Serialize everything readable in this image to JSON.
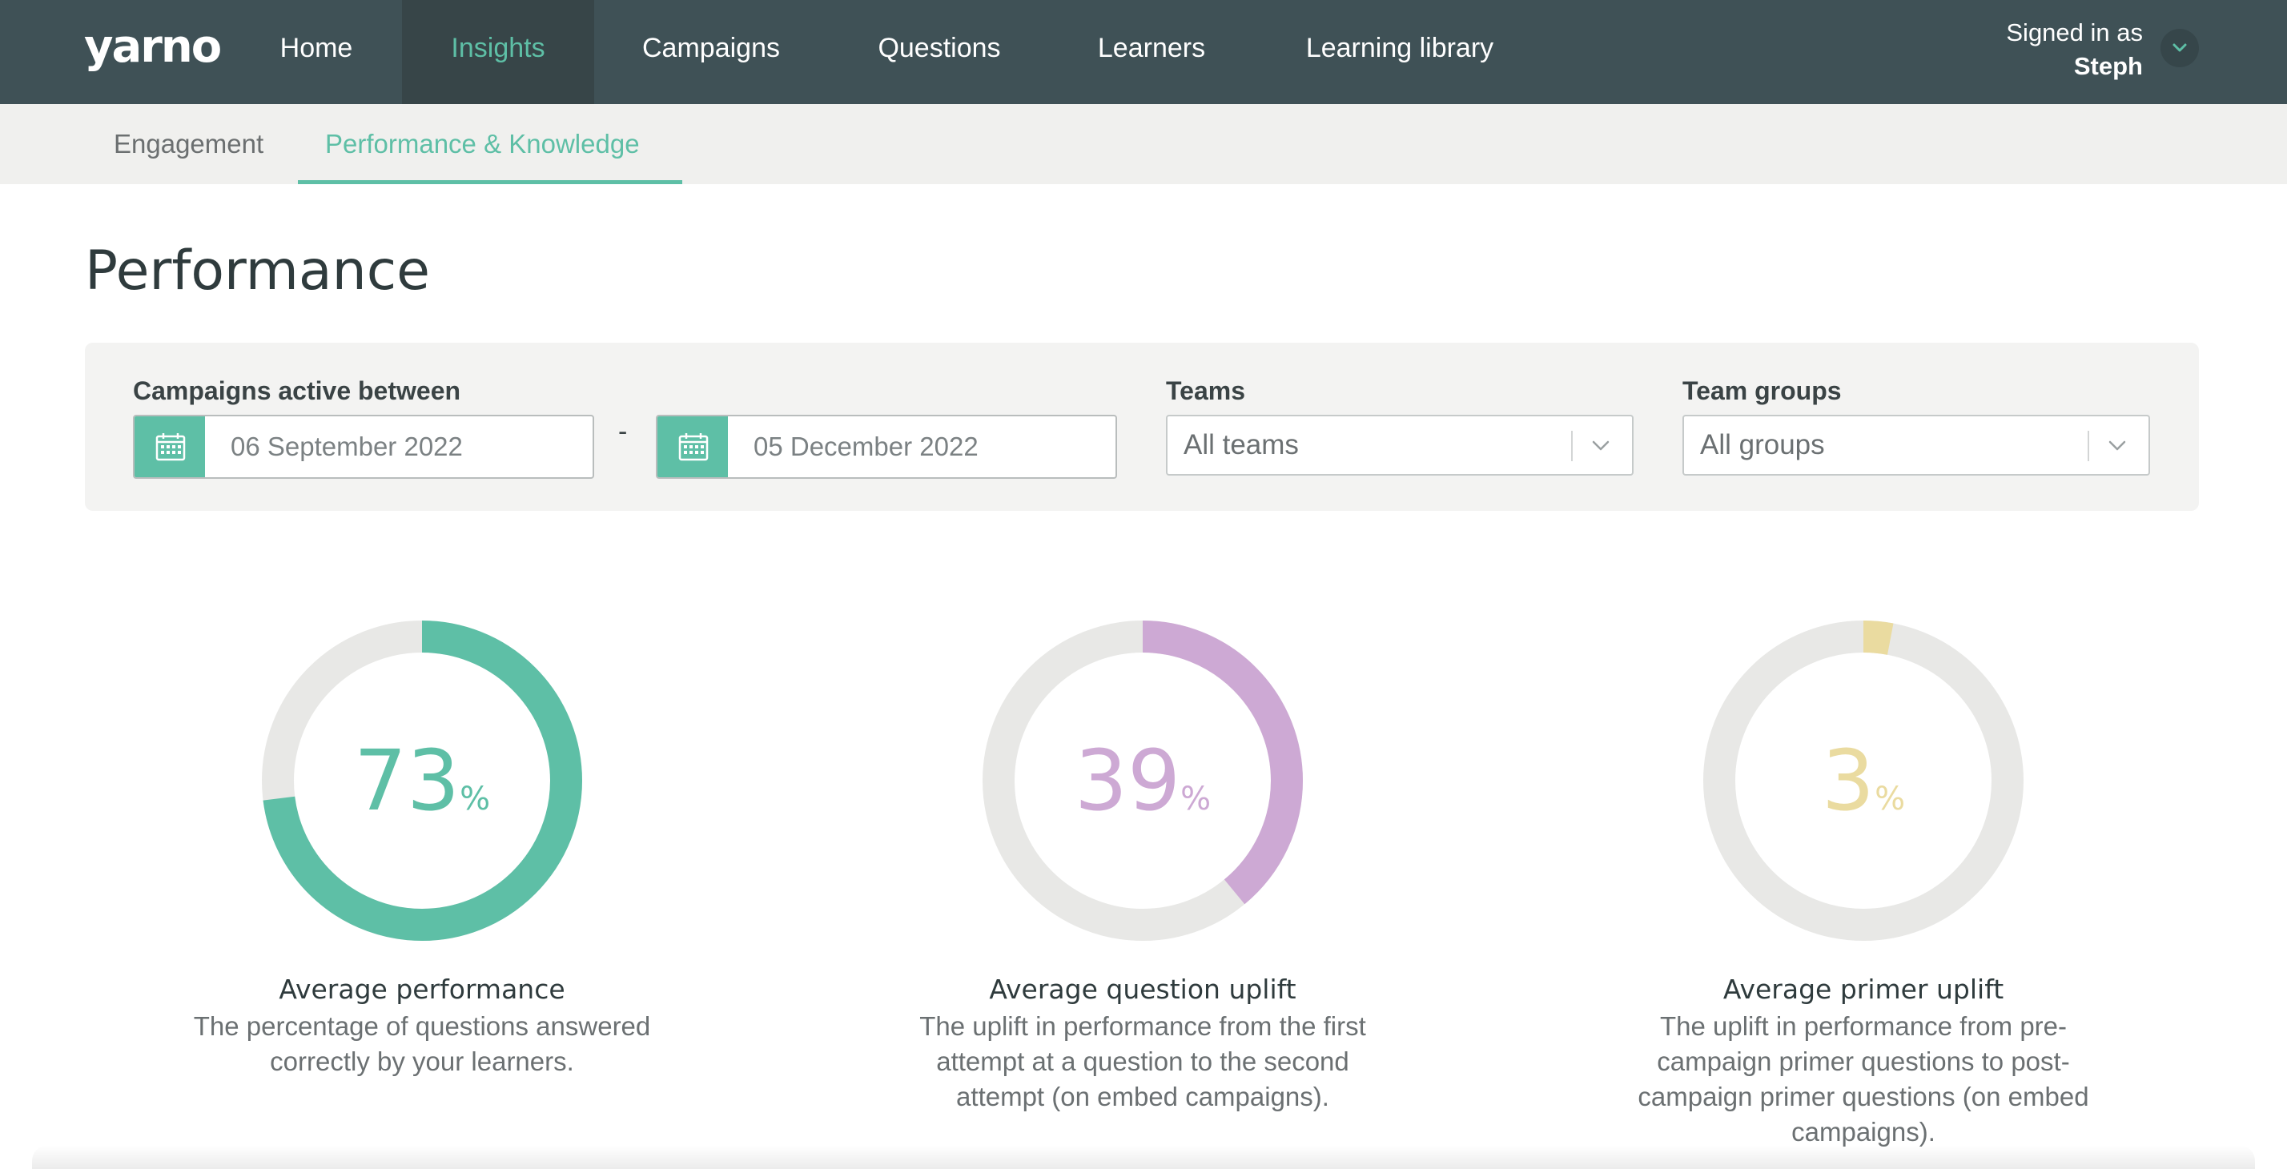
{
  "app": {
    "logo": "yarno"
  },
  "nav": {
    "items": [
      {
        "label": "Home"
      },
      {
        "label": "Insights"
      },
      {
        "label": "Campaigns"
      },
      {
        "label": "Questions"
      },
      {
        "label": "Learners"
      },
      {
        "label": "Learning library"
      }
    ],
    "active": "Insights"
  },
  "user": {
    "signed_in_label": "Signed in as",
    "name": "Steph"
  },
  "subnav": {
    "tabs": [
      {
        "label": "Engagement"
      },
      {
        "label": "Performance & Knowledge"
      }
    ],
    "active": "Performance & Knowledge"
  },
  "page": {
    "title": "Performance"
  },
  "filters": {
    "campaigns_label": "Campaigns active between",
    "start_date": "06 September 2022",
    "separator": "-",
    "end_date": "05 December 2022",
    "teams_label": "Teams",
    "teams_value": "All teams",
    "groups_label": "Team groups",
    "groups_value": "All groups"
  },
  "colors": {
    "accent": "#5ebfa6",
    "nav_bg": "#3f5156",
    "track": "#e8e8e6",
    "performance": "#5ebfa6",
    "question_uplift": "#cda9d4",
    "primer_uplift": "#eadba0"
  },
  "metrics": [
    {
      "value": "73",
      "unit": "%",
      "fraction": 0.73,
      "color": "#5ebfa6",
      "title": "Average performance",
      "description": "The percentage of questions answered correctly by your learners."
    },
    {
      "value": "39",
      "unit": "%",
      "fraction": 0.39,
      "color": "#cda9d4",
      "title": "Average question uplift",
      "description": "The uplift in performance from the first attempt at a question to the second attempt (on embed campaigns)."
    },
    {
      "value": "3",
      "unit": "%",
      "fraction": 0.03,
      "color": "#eadba0",
      "title": "Average primer uplift",
      "description": "The uplift in performance from pre-campaign primer questions to post-campaign primer questions (on embed campaigns)."
    }
  ]
}
